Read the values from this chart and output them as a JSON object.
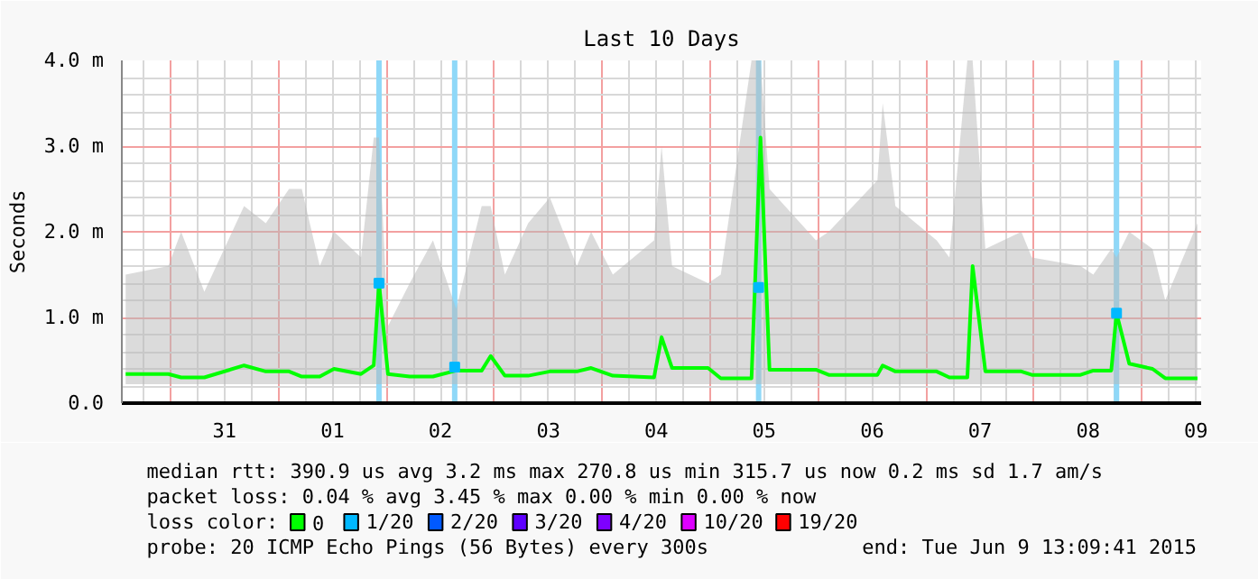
{
  "chart_data": {
    "type": "line",
    "title": "Last 10 Days",
    "ylabel": "Seconds",
    "legend_title": "loss color:",
    "legend": "bottom",
    "grid": true,
    "xlim": [
      "2015-05-30T13:09",
      "2015-06-09T13:09"
    ],
    "xticks": [
      {
        "value": "2015-05-31T00:00",
        "label": null
      },
      {
        "value": "2015-05-31T12:00",
        "label": "31"
      },
      {
        "value": "2015-06-01T00:00",
        "label": null
      },
      {
        "value": "2015-06-01T12:00",
        "label": "01"
      },
      {
        "value": "2015-06-02T00:00",
        "label": null
      },
      {
        "value": "2015-06-02T12:00",
        "label": "02"
      },
      {
        "value": "2015-06-03T00:00",
        "label": null
      },
      {
        "value": "2015-06-03T12:00",
        "label": "03"
      },
      {
        "value": "2015-06-04T00:00",
        "label": null
      },
      {
        "value": "2015-06-04T12:00",
        "label": "04"
      },
      {
        "value": "2015-06-05T00:00",
        "label": null
      },
      {
        "value": "2015-06-05T12:00",
        "label": "05"
      },
      {
        "value": "2015-06-06T00:00",
        "label": null
      },
      {
        "value": "2015-06-06T12:00",
        "label": "06"
      },
      {
        "value": "2015-06-07T00:00",
        "label": null
      },
      {
        "value": "2015-06-07T12:00",
        "label": "07"
      },
      {
        "value": "2015-06-08T00:00",
        "label": null
      },
      {
        "value": "2015-06-08T12:00",
        "label": "08"
      },
      {
        "value": "2015-06-09T00:00",
        "label": null
      },
      {
        "value": "2015-06-09T12:00",
        "label": "09"
      }
    ],
    "ylim": [
      0,
      4
    ],
    "yticks": [
      {
        "value": 0,
        "label": "0.0"
      },
      {
        "value": 1,
        "label": "1.0 m"
      },
      {
        "value": 2,
        "label": "2.0 m"
      },
      {
        "value": 3,
        "label": "3.0 m"
      },
      {
        "value": 4,
        "label": "4.0 m"
      }
    ],
    "x": [
      "2015-05-30T14:00",
      "2015-05-30T23:30",
      "2015-05-31T02:20",
      "2015-05-31T07:30",
      "2015-05-31T16:20",
      "2015-05-31T21:10",
      "2015-06-01T02:20",
      "2015-06-01T05:10",
      "2015-06-01T09:10",
      "2015-06-01T12:20",
      "2015-06-01T18:20",
      "2015-06-01T21:10",
      "2015-06-01T22:20",
      "2015-06-02T00:20",
      "2015-06-02T05:10",
      "2015-06-02T10:20",
      "2015-06-02T15:30",
      "2015-06-02T21:10",
      "2015-06-02T23:10",
      "2015-06-03T02:20",
      "2015-06-03T07:30",
      "2015-06-03T12:20",
      "2015-06-03T18:20",
      "2015-06-03T21:30",
      "2015-06-04T02:20",
      "2015-06-04T11:30",
      "2015-06-04T13:10",
      "2015-06-04T15:30",
      "2015-06-04T23:30",
      "2015-06-05T02:20",
      "2015-06-05T09:10",
      "2015-06-05T11:10",
      "2015-06-05T13:10",
      "2015-06-05T23:30",
      "2015-06-06T02:20",
      "2015-06-06T13:10",
      "2015-06-06T14:20",
      "2015-06-06T17:10",
      "2015-06-07T02:20",
      "2015-06-07T05:10",
      "2015-06-07T09:10",
      "2015-06-07T10:20",
      "2015-06-07T13:10",
      "2015-06-07T21:10",
      "2015-06-07T23:30",
      "2015-06-08T10:20",
      "2015-06-08T13:10",
      "2015-06-08T17:10",
      "2015-06-08T18:20",
      "2015-06-08T21:10",
      "2015-06-09T02:20",
      "2015-06-09T05:10",
      "2015-06-09T12:20"
    ],
    "series": [
      {
        "name": "0",
        "color": "#00ff00",
        "values": [
          0.34,
          0.34,
          0.3,
          0.3,
          0.44,
          0.37,
          0.37,
          0.31,
          0.31,
          0.4,
          0.34,
          0.44,
          1.4,
          0.34,
          0.31,
          0.31,
          0.38,
          0.38,
          0.55,
          0.32,
          0.32,
          0.37,
          0.37,
          0.41,
          0.32,
          0.3,
          0.77,
          0.41,
          0.41,
          0.29,
          0.29,
          3.1,
          0.39,
          0.39,
          0.33,
          0.33,
          0.44,
          0.37,
          0.37,
          0.3,
          0.3,
          1.6,
          0.37,
          0.37,
          0.33,
          0.33,
          0.38,
          0.38,
          1.05,
          0.46,
          0.4,
          0.29,
          0.29
        ],
        "lower": [
          0.22,
          0.22,
          0.22,
          0.22,
          0.22,
          0.22,
          0.22,
          0.22,
          0.22,
          0.22,
          0.22,
          0.22,
          0.22,
          0.22,
          0.22,
          0.22,
          0.22,
          0.22,
          0.22,
          0.22,
          0.22,
          0.22,
          0.22,
          0.22,
          0.22,
          0.22,
          0.22,
          0.22,
          0.22,
          0.22,
          0.22,
          0.22,
          0.22,
          0.22,
          0.22,
          0.22,
          0.22,
          0.22,
          0.22,
          0.22,
          0.22,
          0.22,
          0.22,
          0.22,
          0.22,
          0.22,
          0.22,
          0.22,
          0.22,
          0.22,
          0.22,
          0.22,
          0.22
        ],
        "upper": [
          1.5,
          1.6,
          2.0,
          1.3,
          2.3,
          2.1,
          2.5,
          2.5,
          1.6,
          2.0,
          1.7,
          3.1,
          3.1,
          0.9,
          1.4,
          1.9,
          1.1,
          2.3,
          2.3,
          1.5,
          2.1,
          2.4,
          1.6,
          2.0,
          1.5,
          1.9,
          3.0,
          1.6,
          1.4,
          1.5,
          4.0,
          4.0,
          2.5,
          1.9,
          2.0,
          2.6,
          3.5,
          2.3,
          1.9,
          1.7,
          4.0,
          4.0,
          1.8,
          2.0,
          1.7,
          1.6,
          1.5,
          1.8,
          1.7,
          2.0,
          1.8,
          1.2,
          2.1
        ]
      },
      {
        "name": "1/20",
        "type": "scatter",
        "color": "#00b8ff",
        "x": [
          "2015-06-01T22:20",
          "2015-06-02T15:10",
          "2015-06-05T10:45",
          "2015-06-08T18:20"
        ],
        "values": [
          1.4,
          0.42,
          1.35,
          1.05
        ]
      },
      {
        "name": "2/20",
        "type": "scatter",
        "color": "#0059ff",
        "values": [
          null,
          null,
          null,
          null,
          null,
          null,
          null,
          null,
          null,
          null,
          null,
          null,
          null,
          null,
          null,
          null,
          null,
          null,
          null,
          null,
          null,
          null,
          null,
          null,
          null,
          null,
          null,
          null,
          null,
          null,
          null,
          null,
          null,
          null,
          null,
          null,
          null,
          null,
          null,
          null,
          null,
          null,
          null,
          null,
          null,
          null,
          null,
          null,
          null,
          null,
          null,
          null,
          null
        ]
      },
      {
        "name": "3/20",
        "type": "scatter",
        "color": "#5e00ff",
        "values": [
          null,
          null,
          null,
          null,
          null,
          null,
          null,
          null,
          null,
          null,
          null,
          null,
          null,
          null,
          null,
          null,
          null,
          null,
          null,
          null,
          null,
          null,
          null,
          null,
          null,
          null,
          null,
          null,
          null,
          null,
          null,
          null,
          null,
          null,
          null,
          null,
          null,
          null,
          null,
          null,
          null,
          null,
          null,
          null,
          null,
          null,
          null,
          null,
          null,
          null,
          null,
          null,
          null
        ]
      },
      {
        "name": "4/20",
        "type": "scatter",
        "color": "#7e00ff",
        "values": [
          null,
          null,
          null,
          null,
          null,
          null,
          null,
          null,
          null,
          null,
          null,
          null,
          null,
          null,
          null,
          null,
          null,
          null,
          null,
          null,
          null,
          null,
          null,
          null,
          null,
          null,
          null,
          null,
          null,
          null,
          null,
          null,
          null,
          null,
          null,
          null,
          null,
          null,
          null,
          null,
          null,
          null,
          null,
          null,
          null,
          null,
          null,
          null,
          null,
          null,
          null,
          null,
          null
        ]
      },
      {
        "name": "10/20",
        "type": "scatter",
        "color": "#dd00ff",
        "values": [
          null,
          null,
          null,
          null,
          null,
          null,
          null,
          null,
          null,
          null,
          null,
          null,
          null,
          null,
          null,
          null,
          null,
          null,
          null,
          null,
          null,
          null,
          null,
          null,
          null,
          null,
          null,
          null,
          null,
          null,
          null,
          null,
          null,
          null,
          null,
          null,
          null,
          null,
          null,
          null,
          null,
          null,
          null,
          null,
          null,
          null,
          null,
          null,
          null,
          null,
          null,
          null,
          null
        ]
      },
      {
        "name": "19/20",
        "type": "scatter",
        "color": "#ff0000",
        "values": [
          null,
          null,
          null,
          null,
          null,
          null,
          null,
          null,
          null,
          null,
          null,
          null,
          null,
          null,
          null,
          null,
          null,
          null,
          null,
          null,
          null,
          null,
          null,
          null,
          null,
          null,
          null,
          null,
          null,
          null,
          null,
          null,
          null,
          null,
          null,
          null,
          null,
          null,
          null,
          null,
          null,
          null,
          null,
          null,
          null,
          null,
          null,
          null,
          null,
          null,
          null,
          null,
          null
        ]
      }
    ],
    "ref_lines": [
      {
        "axis": "x",
        "value": "2015-06-01T22:20",
        "color": "#8fd8f8"
      },
      {
        "axis": "x",
        "value": "2015-06-02T15:10",
        "color": "#8fd8f8"
      },
      {
        "axis": "x",
        "value": "2015-06-05T10:45",
        "color": "#8fd8f8"
      },
      {
        "axis": "x",
        "value": "2015-06-08T18:20",
        "color": "#8fd8f8"
      }
    ],
    "annotations": [
      "median rtt:  390.9 us avg  3.2 ms max  270.8 us min  315.7 us now  0.2 ms sd  1.7   am/s",
      "packet loss: 0.04 % avg  3.45 % max  0.00 % min  0.00 % now",
      "probe:       20 ICMP Echo Pings (56 Bytes) every 300s",
      "end: Tue Jun  9 13:09:41 2015"
    ]
  }
}
